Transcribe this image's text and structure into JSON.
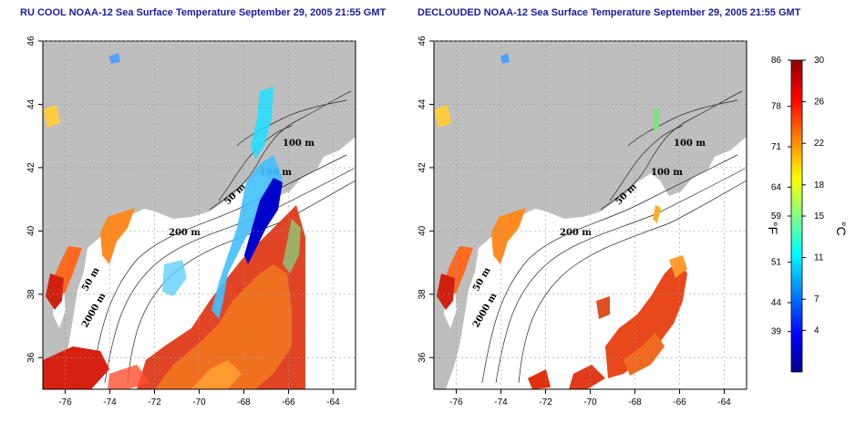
{
  "titles": {
    "left": "RU COOL NOAA-12 Sea Surface Temperature September 29, 2005 21:55 GMT",
    "right": "DECLOUDED NOAA-12 Sea Surface Temperature September 29, 2005 21:55 GMT"
  },
  "axes": {
    "x_ticks": [
      "-76",
      "-74",
      "-72",
      "-70",
      "-68",
      "-66",
      "-64"
    ],
    "y_ticks": [
      "36",
      "38",
      "40",
      "42",
      "44",
      "46"
    ],
    "lon_range": [
      -77,
      -63
    ],
    "lat_range": [
      35,
      46
    ]
  },
  "contour_labels": [
    "100 m",
    "100 m",
    "50 m",
    "200 m",
    "50 m",
    "2000 m"
  ],
  "colorbar": {
    "fahrenheit_ticks": [
      "86",
      "78",
      "71",
      "64",
      "59",
      "51",
      "44",
      "39"
    ],
    "celsius_ticks": [
      "30",
      "26",
      "22",
      "18",
      "15",
      "11",
      "7",
      "4"
    ],
    "fahrenheit_unit": "°F",
    "celsius_unit": "°C"
  },
  "colors": {
    "land": "#bebebe",
    "water": "#ffffff",
    "title": "#1a1aa0"
  }
}
